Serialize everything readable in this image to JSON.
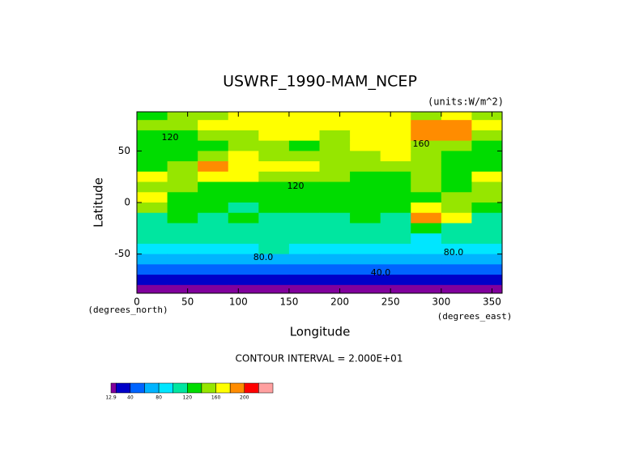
{
  "chart_data": {
    "type": "contour",
    "title": "USWRF_1990-MAM_NCEP",
    "units": "(units:W/m^2)",
    "xlabel": "Longitude",
    "ylabel": "Latitude",
    "xunits": "(degrees_east)",
    "yunits": "(degrees_north)",
    "note": "CONTOUR INTERVAL = 2.000E+01",
    "xlim": [
      0,
      360
    ],
    "ylim": [
      -88,
      88
    ],
    "xticks": [
      0,
      50,
      100,
      150,
      200,
      250,
      300,
      350
    ],
    "yticks": [
      -50,
      0,
      50
    ],
    "lon": [
      15,
      45,
      75,
      105,
      135,
      165,
      195,
      225,
      255,
      285,
      315,
      345
    ],
    "lat": [
      85,
      75,
      65,
      55,
      45,
      35,
      25,
      15,
      5,
      -5,
      -15,
      -25,
      -35,
      -45,
      -55,
      -65,
      -75,
      -85
    ],
    "values": [
      [
        120,
        140,
        140,
        160,
        160,
        160,
        160,
        160,
        160,
        140,
        160,
        140
      ],
      [
        140,
        140,
        160,
        160,
        160,
        160,
        160,
        160,
        160,
        180,
        180,
        160
      ],
      [
        130,
        130,
        140,
        150,
        160,
        160,
        150,
        160,
        160,
        180,
        190,
        150
      ],
      [
        130,
        120,
        130,
        140,
        140,
        130,
        140,
        160,
        160,
        140,
        140,
        130
      ],
      [
        130,
        130,
        140,
        170,
        140,
        140,
        150,
        140,
        160,
        150,
        130,
        130
      ],
      [
        120,
        140,
        180,
        170,
        160,
        160,
        140,
        140,
        150,
        150,
        130,
        120
      ],
      [
        160,
        150,
        160,
        160,
        150,
        140,
        140,
        130,
        130,
        140,
        130,
        160
      ],
      [
        150,
        140,
        120,
        120,
        130,
        120,
        130,
        120,
        120,
        140,
        130,
        150
      ],
      [
        160,
        130,
        120,
        120,
        120,
        120,
        120,
        120,
        130,
        130,
        140,
        150
      ],
      [
        150,
        120,
        120,
        110,
        120,
        120,
        120,
        130,
        130,
        170,
        140,
        120
      ],
      [
        110,
        120,
        110,
        120,
        110,
        110,
        110,
        120,
        110,
        180,
        160,
        110
      ],
      [
        110,
        110,
        110,
        100,
        110,
        110,
        110,
        110,
        110,
        130,
        110,
        110
      ],
      [
        100,
        100,
        100,
        100,
        100,
        100,
        100,
        100,
        100,
        90,
        100,
        100
      ],
      [
        90,
        90,
        90,
        90,
        100,
        90,
        90,
        90,
        90,
        80,
        90,
        90
      ],
      [
        70,
        70,
        70,
        70,
        70,
        70,
        70,
        70,
        70,
        70,
        70,
        70
      ],
      [
        50,
        50,
        50,
        50,
        50,
        50,
        50,
        40,
        40,
        40,
        50,
        50
      ],
      [
        30,
        30,
        30,
        30,
        30,
        30,
        30,
        30,
        30,
        30,
        30,
        30
      ],
      [
        15,
        15,
        15,
        15,
        15,
        15,
        15,
        15,
        15,
        15,
        15,
        15
      ]
    ],
    "annotations": [
      "120",
      "120",
      "160",
      "80.0",
      "40.0",
      "80.0"
    ],
    "colorbar": {
      "levels": [
        12.9,
        20,
        40,
        60,
        80,
        100,
        120,
        140,
        160,
        180,
        200,
        220,
        240
      ],
      "colors": [
        "#80009c",
        "#0000c8",
        "#0064ff",
        "#00b4ff",
        "#00e6ff",
        "#00e6a0",
        "#00dc00",
        "#96e600",
        "#ffff00",
        "#ff8c00",
        "#ff0000",
        "#ffa0a0"
      ],
      "ticks": [
        12.9,
        40,
        80,
        120,
        160,
        200
      ]
    }
  }
}
